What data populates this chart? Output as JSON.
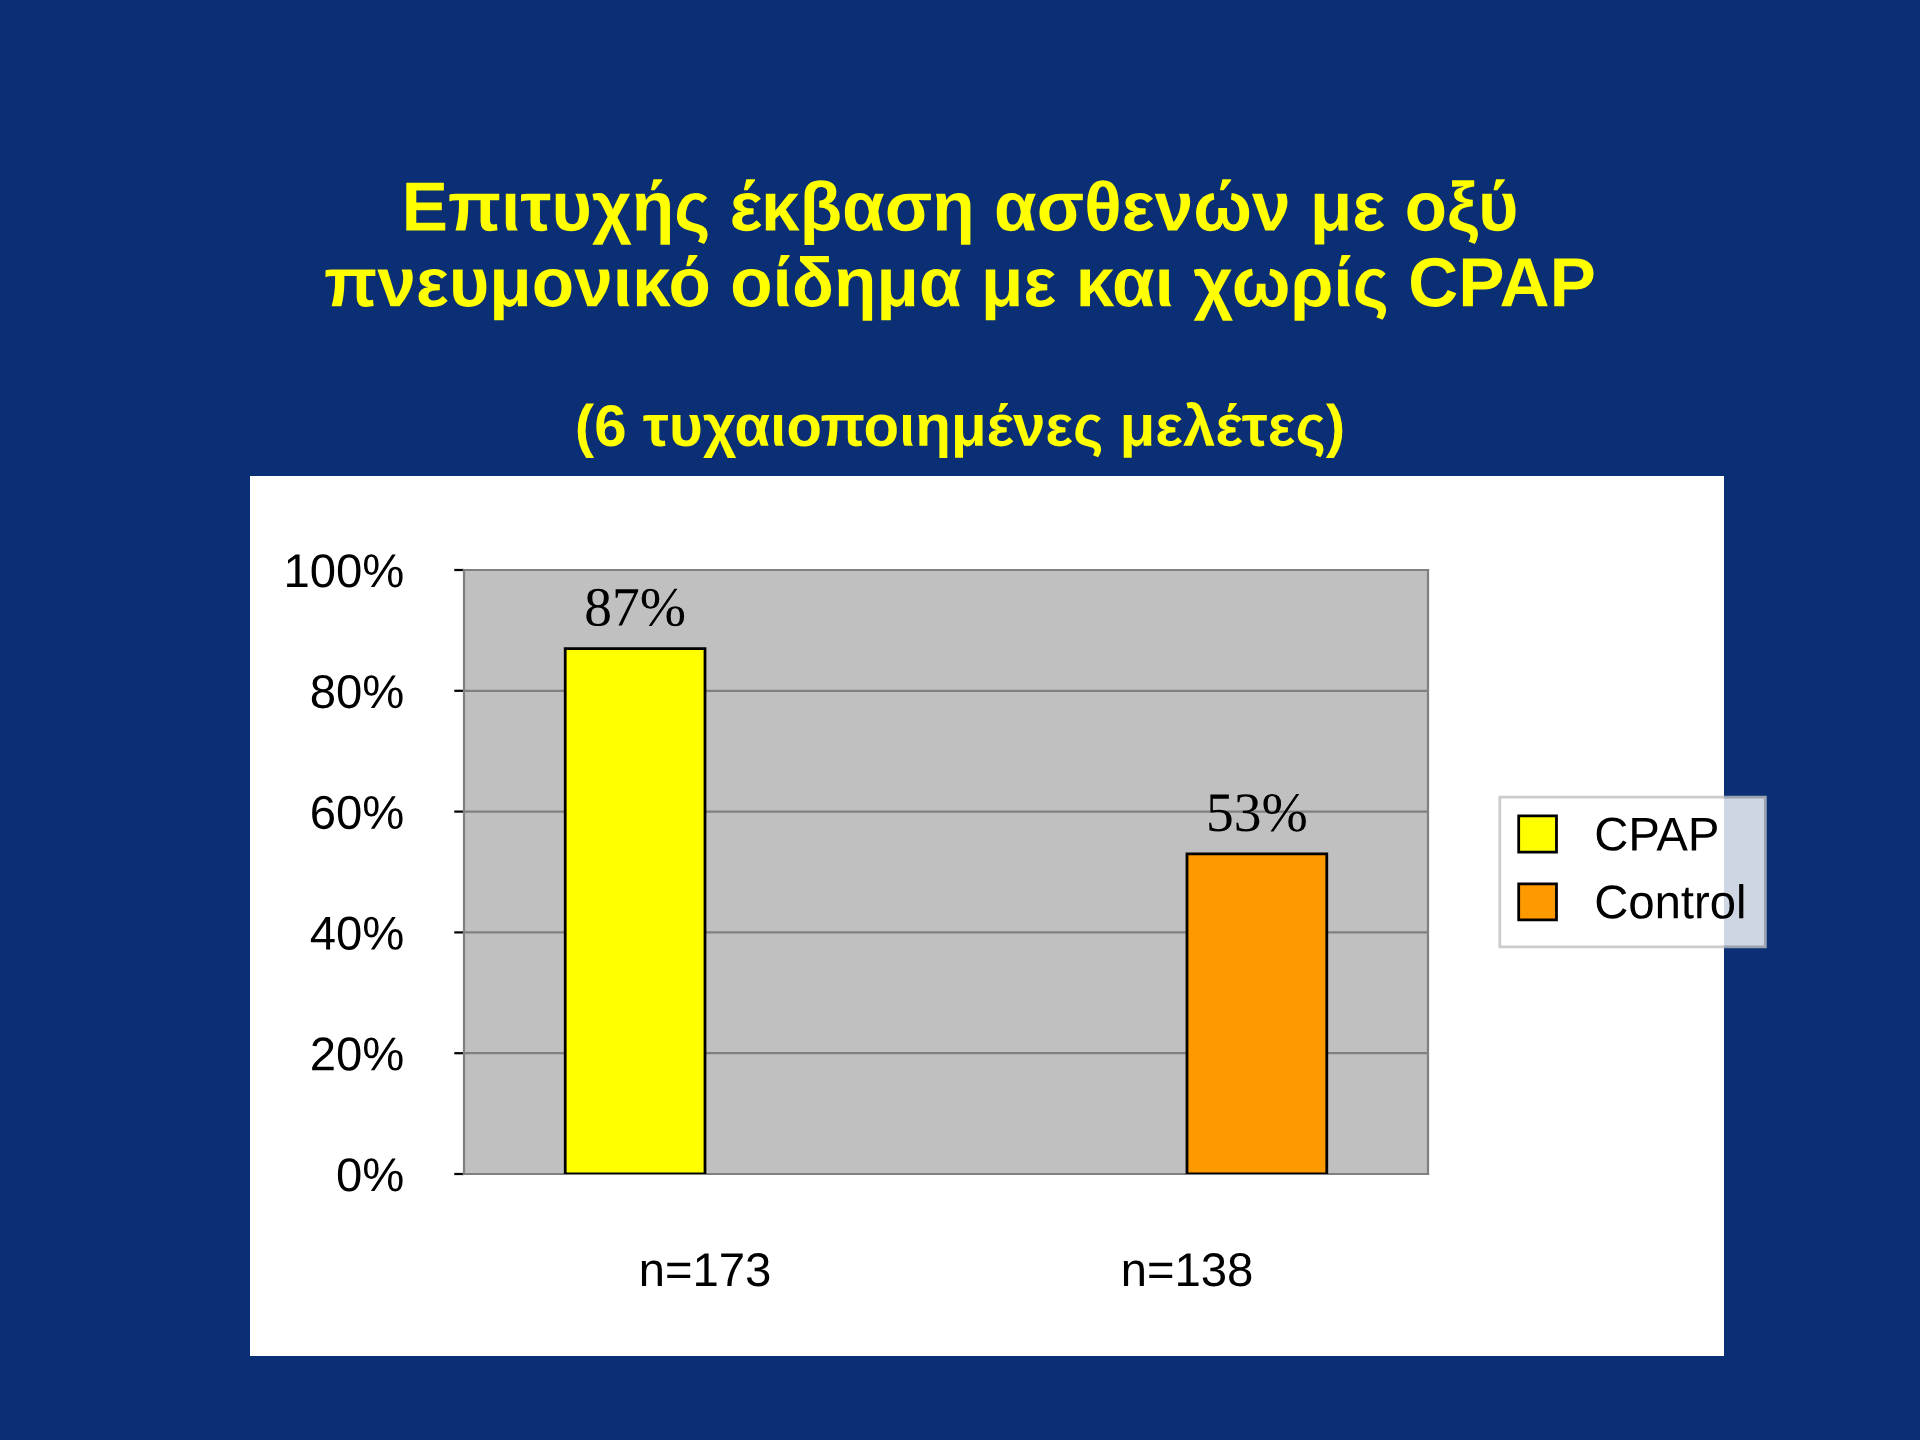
{
  "chart_data": {
    "type": "bar",
    "title": "Επιτυχής έκβαση ασθενών με οξύ\nπνευμονικό οίδημα με και χωρίς CPAP",
    "subtitle": "(6 τυχαιοποιημένες μελέτες)",
    "categories": [
      "n=173",
      "n=138"
    ],
    "series": [
      {
        "name": "CPAP",
        "color": "#ffff00",
        "values": [
          87,
          null
        ],
        "value_labels": [
          "87%",
          null
        ]
      },
      {
        "name": "Control",
        "color": "#ff9900",
        "values": [
          null,
          53
        ],
        "value_labels": [
          null,
          "53%"
        ]
      }
    ],
    "ylim": [
      0,
      100
    ],
    "yticks": [
      {
        "value": 0,
        "label": "0%"
      },
      {
        "value": 20,
        "label": "20%"
      },
      {
        "value": 40,
        "label": "40%"
      },
      {
        "value": 60,
        "label": "60%"
      },
      {
        "value": 80,
        "label": "80%"
      },
      {
        "value": 100,
        "label": "100%"
      }
    ],
    "grid": "y",
    "legend": "right"
  }
}
